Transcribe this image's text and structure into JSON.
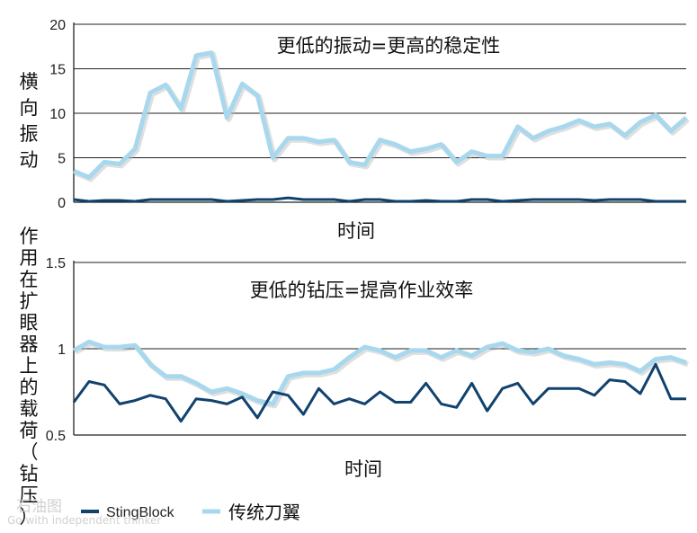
{
  "chart_data": [
    {
      "type": "line",
      "title": "更低的振动=更高的稳定性",
      "xlabel": "时间",
      "ylabel": "横向振动",
      "ylim": [
        0,
        20
      ],
      "yticks": [
        "0",
        "5",
        "10",
        "15",
        "20"
      ],
      "grid": true,
      "series": [
        {
          "name": "传统刀翼",
          "color": "#a8d8ee",
          "values": [
            3.5,
            2.8,
            4.5,
            4.3,
            6.0,
            12.3,
            13.2,
            10.5,
            16.5,
            16.8,
            9.5,
            13.3,
            12.0,
            5.0,
            7.2,
            7.2,
            6.8,
            7.0,
            4.5,
            4.2,
            7.0,
            6.5,
            5.7,
            6.0,
            6.5,
            4.5,
            5.7,
            5.2,
            5.2,
            8.5,
            7.2,
            8.0,
            8.5,
            9.2,
            8.5,
            8.8,
            7.5,
            9.0,
            9.8,
            8.0,
            9.5
          ]
        },
        {
          "name": "StingBlock",
          "color": "#11426e",
          "values": [
            0.3,
            0.1,
            0.2,
            0.2,
            0.1,
            0.3,
            0.3,
            0.3,
            0.3,
            0.3,
            0.1,
            0.2,
            0.3,
            0.3,
            0.5,
            0.3,
            0.3,
            0.3,
            0.1,
            0.3,
            0.3,
            0.1,
            0.1,
            0.2,
            0.1,
            0.1,
            0.3,
            0.3,
            0.1,
            0.2,
            0.3,
            0.3,
            0.3,
            0.3,
            0.2,
            0.3,
            0.3,
            0.3,
            0.1,
            0.1,
            0.1
          ]
        }
      ]
    },
    {
      "type": "line",
      "title": "更低的钻压=提高作业效率",
      "xlabel": "时间",
      "ylabel": "作用在扩眼器上的载荷（钻压）",
      "ylim": [
        0.5,
        1.5
      ],
      "yticks": [
        "0.5",
        "1",
        "1.5"
      ],
      "grid": true,
      "series": [
        {
          "name": "传统刀翼",
          "color": "#a8d8ee",
          "values": [
            0.99,
            1.04,
            1.01,
            1.01,
            1.02,
            0.91,
            0.84,
            0.84,
            0.8,
            0.75,
            0.77,
            0.74,
            0.7,
            0.68,
            0.84,
            0.86,
            0.86,
            0.88,
            0.95,
            1.01,
            0.99,
            0.95,
            0.99,
            0.99,
            0.95,
            0.99,
            0.96,
            1.01,
            1.03,
            0.99,
            0.98,
            1.0,
            0.96,
            0.94,
            0.91,
            0.92,
            0.91,
            0.87,
            0.94,
            0.95,
            0.92
          ]
        },
        {
          "name": "StingBlock",
          "color": "#11426e",
          "values": [
            0.69,
            0.81,
            0.79,
            0.68,
            0.7,
            0.73,
            0.71,
            0.58,
            0.71,
            0.7,
            0.68,
            0.72,
            0.6,
            0.75,
            0.73,
            0.62,
            0.77,
            0.68,
            0.71,
            0.68,
            0.75,
            0.69,
            0.69,
            0.8,
            0.68,
            0.66,
            0.8,
            0.64,
            0.77,
            0.8,
            0.68,
            0.77,
            0.77,
            0.77,
            0.73,
            0.82,
            0.81,
            0.74,
            0.91,
            0.71,
            0.71
          ]
        }
      ]
    }
  ],
  "legend": {
    "placement": "bottom",
    "items": [
      {
        "label": "StingBlock",
        "color": "#11426e"
      },
      {
        "label": "传统刀翼",
        "color": "#a8d8ee"
      }
    ]
  },
  "watermark": {
    "logo_text": "石油图",
    "tagline": "Go with independent thinker"
  }
}
